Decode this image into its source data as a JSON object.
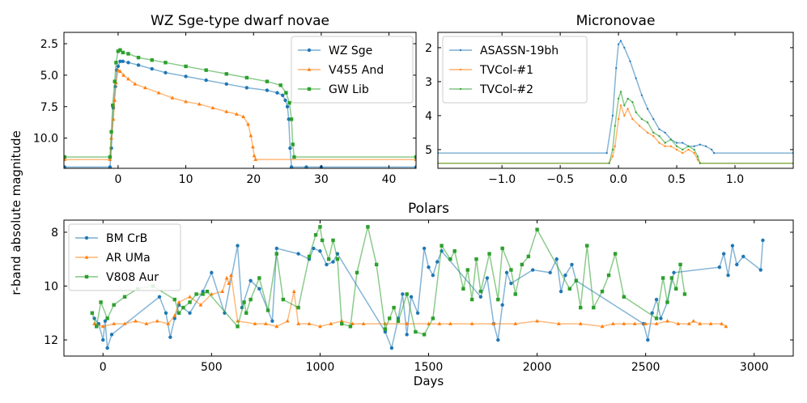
{
  "figure": {
    "shared_ylabel": "r-band absolute magnitude"
  },
  "chart_data": [
    {
      "id": "wz",
      "type": "line",
      "title": "WZ Sge-type dwarf novae",
      "xlabel": "",
      "ylabel": "",
      "xlim": [
        -8,
        44
      ],
      "ylim": [
        12.4,
        1.6
      ],
      "y_inverted": true,
      "xticks": [
        0,
        10,
        20,
        30,
        40
      ],
      "yticks": [
        2.5,
        5.0,
        7.5,
        10.0
      ],
      "ytick_labels": [
        "2.5",
        "5.0",
        "7.5",
        "10.0"
      ],
      "legend": "top-right",
      "series": [
        {
          "name": "WZ Sge",
          "color": "#1f77b4",
          "marker": "circle",
          "x": [
            -7.9,
            -1.2,
            -1.0,
            -0.7,
            -0.4,
            -0.2,
            0.0,
            0.3,
            0.7,
            1.5,
            3,
            5,
            7,
            10,
            13,
            16,
            19,
            22,
            23.5,
            24.3,
            24.7,
            25.0,
            25.2,
            25.4,
            25.6,
            27.8,
            30,
            44
          ],
          "y": [
            12.3,
            12.3,
            10.8,
            7.6,
            5.9,
            4.6,
            4.3,
            3.9,
            3.9,
            4.0,
            4.2,
            4.5,
            4.8,
            5.1,
            5.4,
            5.7,
            6.0,
            6.2,
            6.4,
            6.6,
            7.0,
            7.5,
            8.5,
            10.8,
            12.3,
            12.3,
            12.3,
            12.3
          ]
        },
        {
          "name": "V455 And",
          "color": "#ff7f0e",
          "marker": "triangle",
          "x": [
            -7.9,
            -1.2,
            -1.0,
            -0.7,
            -0.5,
            -0.3,
            0.0,
            0.3,
            0.8,
            1.5,
            2.5,
            4,
            6,
            8,
            10,
            12,
            14,
            16,
            17.5,
            18.5,
            19.2,
            19.6,
            19.9,
            20.1,
            20.3,
            44
          ],
          "y": [
            11.7,
            11.7,
            10.0,
            8.5,
            7.0,
            5.6,
            4.6,
            4.7,
            5.0,
            5.3,
            5.7,
            6.0,
            6.4,
            6.8,
            7.1,
            7.3,
            7.6,
            7.9,
            8.1,
            8.3,
            8.9,
            9.8,
            10.7,
            11.4,
            11.7,
            11.7
          ]
        },
        {
          "name": "GW Lib",
          "color": "#2ca02c",
          "marker": "square",
          "x": [
            -7.9,
            -1.2,
            -1.0,
            -0.8,
            -0.5,
            -0.3,
            0.0,
            0.3,
            0.7,
            1.5,
            3,
            5,
            7,
            10,
            13,
            16,
            19,
            22,
            24,
            24.8,
            25.3,
            25.6,
            25.8,
            26.0,
            44
          ],
          "y": [
            11.5,
            11.5,
            9.5,
            7.4,
            5.5,
            4.0,
            3.1,
            3.0,
            3.2,
            3.3,
            3.6,
            3.8,
            4.0,
            4.3,
            4.6,
            4.9,
            5.2,
            5.5,
            5.8,
            6.4,
            7.2,
            8.5,
            10.5,
            11.5,
            11.5
          ]
        }
      ]
    },
    {
      "id": "micro",
      "type": "line",
      "title": "Micronovae",
      "xlabel": "",
      "ylabel": "",
      "xlim": [
        -1.55,
        1.5
      ],
      "ylim": [
        5.55,
        1.55
      ],
      "y_inverted": true,
      "xticks": [
        -1.0,
        -0.5,
        0.0,
        0.5,
        1.0
      ],
      "xtick_labels": [
        "−1.0",
        "−0.5",
        "0.0",
        "0.5",
        "1.0"
      ],
      "yticks": [
        2,
        3,
        4,
        5
      ],
      "ytick_labels": [
        "2",
        "3",
        "4",
        "5"
      ],
      "legend": "top-left",
      "series": [
        {
          "name": "ASASSN-19bh",
          "color": "#1f77b4",
          "marker": "dot",
          "x": [
            -1.55,
            -0.1,
            -0.05,
            -0.02,
            0.0,
            0.02,
            0.05,
            0.1,
            0.15,
            0.2,
            0.25,
            0.3,
            0.35,
            0.4,
            0.45,
            0.5,
            0.55,
            0.6,
            0.65,
            0.7,
            0.75,
            0.8,
            0.82,
            1.5
          ],
          "y": [
            5.1,
            5.1,
            4.0,
            2.6,
            1.9,
            1.8,
            2.0,
            2.4,
            2.9,
            3.4,
            3.8,
            4.1,
            4.4,
            4.5,
            4.7,
            4.8,
            4.8,
            4.9,
            4.9,
            4.85,
            4.9,
            5.0,
            5.1,
            5.1
          ]
        },
        {
          "name": "TVCol-#1",
          "color": "#ff7f0e",
          "marker": "dot",
          "x": [
            -1.55,
            -0.08,
            -0.05,
            -0.03,
            0.0,
            0.02,
            0.05,
            0.08,
            0.12,
            0.18,
            0.25,
            0.3,
            0.35,
            0.4,
            0.45,
            0.5,
            0.55,
            0.6,
            0.65,
            0.68,
            0.7,
            1.5
          ],
          "y": [
            5.4,
            5.4,
            5.2,
            4.9,
            4.1,
            3.7,
            4.0,
            3.8,
            4.1,
            4.3,
            4.5,
            4.6,
            4.8,
            4.9,
            4.9,
            5.0,
            5.1,
            5.0,
            5.1,
            5.3,
            5.4,
            5.4
          ]
        },
        {
          "name": "TVCol-#2",
          "color": "#2ca02c",
          "marker": "dot",
          "x": [
            -1.55,
            -0.08,
            -0.05,
            -0.03,
            0.0,
            0.02,
            0.05,
            0.08,
            0.12,
            0.15,
            0.2,
            0.25,
            0.3,
            0.35,
            0.4,
            0.45,
            0.5,
            0.55,
            0.6,
            0.65,
            0.68,
            0.7,
            1.5
          ],
          "y": [
            5.4,
            5.4,
            5.0,
            4.3,
            3.5,
            3.3,
            3.7,
            3.5,
            3.6,
            3.9,
            4.1,
            4.2,
            4.5,
            4.6,
            4.8,
            4.7,
            4.9,
            5.0,
            4.9,
            5.0,
            5.2,
            5.4,
            5.4
          ]
        }
      ]
    },
    {
      "id": "polars",
      "type": "line",
      "title": "Polars",
      "xlabel": "Days",
      "ylabel": "",
      "xlim": [
        -180,
        3180
      ],
      "ylim": [
        12.6,
        7.55
      ],
      "y_inverted": true,
      "xticks": [
        0,
        500,
        1000,
        1500,
        2000,
        2500,
        3000
      ],
      "yticks": [
        8,
        10,
        12
      ],
      "legend": "top-left",
      "series": [
        {
          "name": "BM CrB",
          "color": "#1f77b4",
          "marker": "circle",
          "x": [
            -40,
            -20,
            0,
            10,
            20,
            40,
            260,
            290,
            310,
            330,
            350,
            400,
            460,
            500,
            560,
            620,
            640,
            680,
            720,
            780,
            800,
            900,
            950,
            970,
            1000,
            1030,
            1060,
            1080,
            1300,
            1330,
            1360,
            1380,
            1400,
            1420,
            1450,
            1480,
            1500,
            1520,
            1540,
            1560,
            1740,
            1770,
            1800,
            1820,
            1840,
            1860,
            1880,
            1980,
            2060,
            2090,
            2110,
            2130,
            2160,
            2180,
            2490,
            2510,
            2530,
            2550,
            2570,
            2600,
            2630,
            2840,
            2860,
            2880,
            2900,
            2920,
            2950,
            3030,
            3040
          ],
          "y": [
            11.2,
            11.4,
            12.0,
            11.3,
            12.3,
            11.8,
            10.4,
            11.0,
            11.9,
            11.2,
            10.7,
            11.0,
            10.2,
            9.5,
            11.0,
            8.5,
            10.8,
            9.8,
            10.1,
            11.3,
            8.6,
            8.8,
            9.0,
            8.6,
            8.7,
            9.2,
            9.1,
            8.8,
            11.7,
            12.3,
            11.2,
            10.3,
            11.8,
            10.4,
            11.0,
            8.6,
            9.3,
            9.6,
            9.1,
            8.7,
            10.4,
            9.7,
            11.4,
            12.0,
            10.7,
            9.5,
            9.9,
            9.4,
            9.5,
            9.0,
            10.2,
            9.6,
            9.2,
            9.8,
            11.4,
            12.0,
            11.0,
            10.5,
            11.2,
            10.6,
            9.5,
            9.3,
            8.8,
            9.6,
            8.5,
            9.2,
            8.9,
            9.4,
            8.3
          ]
        },
        {
          "name": "AR UMa",
          "color": "#ff7f0e",
          "marker": "triangle",
          "x": [
            -40,
            0,
            50,
            100,
            150,
            200,
            250,
            300,
            330,
            350,
            400,
            450,
            500,
            550,
            570,
            580,
            590,
            620,
            700,
            750,
            800,
            850,
            880,
            900,
            950,
            1000,
            1050,
            1100,
            1150,
            1200,
            1300,
            1400,
            1500,
            1550,
            1600,
            1700,
            1800,
            1900,
            2000,
            2100,
            2200,
            2300,
            2350,
            2400,
            2450,
            2500,
            2550,
            2600,
            2650,
            2700,
            2720,
            2750,
            2800,
            2850,
            2870
          ],
          "y": [
            11.4,
            11.5,
            11.4,
            11.4,
            11.3,
            11.4,
            11.3,
            11.4,
            11.1,
            10.6,
            10.4,
            10.7,
            10.3,
            10.2,
            9.7,
            9.9,
            9.6,
            11.3,
            11.4,
            11.4,
            11.5,
            11.3,
            10.2,
            11.4,
            11.4,
            11.5,
            11.4,
            11.3,
            11.4,
            11.4,
            11.4,
            11.4,
            11.4,
            11.4,
            11.4,
            11.4,
            11.4,
            11.4,
            11.3,
            11.4,
            11.4,
            11.5,
            11.4,
            11.4,
            11.4,
            11.4,
            11.4,
            11.3,
            11.4,
            11.4,
            11.3,
            11.4,
            11.4,
            11.4,
            11.5
          ]
        },
        {
          "name": "V808 Aur",
          "color": "#2ca02c",
          "marker": "square",
          "x": [
            -50,
            -30,
            -10,
            20,
            50,
            100,
            160,
            230,
            330,
            350,
            370,
            400,
            430,
            460,
            480,
            620,
            650,
            660,
            680,
            720,
            760,
            800,
            830,
            900,
            950,
            980,
            1000,
            1010,
            1040,
            1060,
            1080,
            1100,
            1140,
            1170,
            1220,
            1260,
            1300,
            1320,
            1340,
            1360,
            1400,
            1440,
            1480,
            1520,
            1560,
            1600,
            1620,
            1660,
            1680,
            1700,
            1720,
            1740,
            1780,
            1820,
            1840,
            1880,
            1900,
            1930,
            1960,
            2000,
            2150,
            2180,
            2200,
            2230,
            2260,
            2300,
            2330,
            2360,
            2400,
            2550,
            2580,
            2600,
            2620,
            2640,
            2660,
            2680
          ],
          "y": [
            11.0,
            11.5,
            10.6,
            11.2,
            10.7,
            10.4,
            10.1,
            10.0,
            10.5,
            11.0,
            10.8,
            10.6,
            10.3,
            10.3,
            10.2,
            11.5,
            10.6,
            11.0,
            10.5,
            9.7,
            10.9,
            8.8,
            10.5,
            10.8,
            8.9,
            8.1,
            7.8,
            8.3,
            9.0,
            8.3,
            9.0,
            11.4,
            11.5,
            9.5,
            7.8,
            9.2,
            11.6,
            11.2,
            10.8,
            11.3,
            10.3,
            11.7,
            11.8,
            11.2,
            8.5,
            9.0,
            8.7,
            10.1,
            9.4,
            10.5,
            9.0,
            10.2,
            8.8,
            10.5,
            8.6,
            9.4,
            10.3,
            9.2,
            8.9,
            7.9,
            10.1,
            9.8,
            10.8,
            8.5,
            10.8,
            10.2,
            9.6,
            8.8,
            10.4,
            11.2,
            9.7,
            10.6,
            9.7,
            10.1,
            9.2,
            10.3
          ]
        }
      ]
    }
  ]
}
